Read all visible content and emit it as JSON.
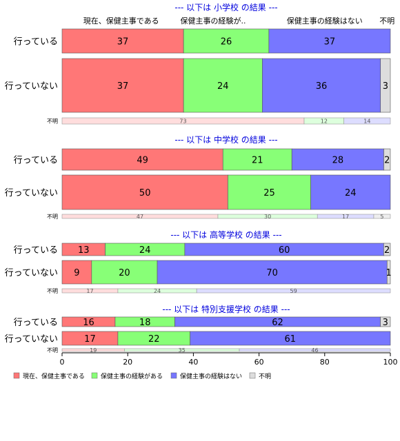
{
  "chart_data": {
    "type": "bar",
    "orientation": "horizontal",
    "stacked": true,
    "percent": true,
    "xlim": [
      0,
      100
    ],
    "xticks": [
      0,
      20,
      40,
      60,
      80,
      100
    ],
    "category_headers": [
      "現在、保健主事である",
      "保健主事の経験が..",
      "保健主事の経験はない",
      "不明"
    ],
    "legend": {
      "placement": "bottom-left",
      "entries": [
        "現在、保健主事である",
        "保健主事の経験がある",
        "保健主事の経験はない",
        "不明"
      ]
    },
    "series_colors": [
      "#ff7777",
      "#88ff77",
      "#7777ff",
      "#dddddd"
    ],
    "panels": [
      {
        "title": "--- 以下は 小学校 の結果 ---",
        "rows": [
          {
            "label": "行っている",
            "values": [
              37,
              26,
              37,
              0
            ],
            "labels": [
              "37",
              "26",
              "37",
              ""
            ]
          },
          {
            "label": "行っていない",
            "values": [
              37,
              24,
              36,
              3
            ],
            "labels": [
              "37",
              "24",
              "36",
              "3"
            ]
          },
          {
            "label": "不明",
            "values": [
              73,
              12,
              14,
              0
            ],
            "labels": [
              "73",
              "12",
              "14",
              ""
            ]
          }
        ]
      },
      {
        "title": "--- 以下は 中学校 の結果 ---",
        "rows": [
          {
            "label": "行っている",
            "values": [
              49,
              21,
              28,
              2
            ],
            "labels": [
              "49",
              "21",
              "28",
              "2"
            ]
          },
          {
            "label": "行っていない",
            "values": [
              50,
              25,
              24,
              0
            ],
            "labels": [
              "50",
              "25",
              "24",
              ""
            ]
          },
          {
            "label": "不明",
            "values": [
              47,
              30,
              17,
              5
            ],
            "labels": [
              "47",
              "30",
              "17",
              "5"
            ]
          }
        ]
      },
      {
        "title": "--- 以下は 高等学校 の結果 ---",
        "rows": [
          {
            "label": "行っている",
            "values": [
              13,
              24,
              60,
              2
            ],
            "labels": [
              "13",
              "24",
              "60",
              "2"
            ]
          },
          {
            "label": "行っていない",
            "values": [
              9,
              20,
              70,
              1
            ],
            "labels": [
              "9",
              "20",
              "70",
              "1"
            ]
          },
          {
            "label": "不明",
            "values": [
              17,
              24,
              59,
              0
            ],
            "labels": [
              "17",
              "24",
              "59",
              ""
            ]
          }
        ]
      },
      {
        "title": "--- 以下は 特別支援学校 の結果 ---",
        "rows": [
          {
            "label": "行っている",
            "values": [
              16,
              18,
              62,
              3
            ],
            "labels": [
              "16",
              "18",
              "62",
              "3"
            ]
          },
          {
            "label": "行っていない",
            "values": [
              17,
              22,
              61,
              0
            ],
            "labels": [
              "17",
              "22",
              "61",
              ""
            ]
          },
          {
            "label": "不明",
            "values": [
              19,
              35,
              46,
              0
            ],
            "labels": [
              "19",
              "35",
              "46",
              ""
            ]
          }
        ]
      }
    ]
  }
}
